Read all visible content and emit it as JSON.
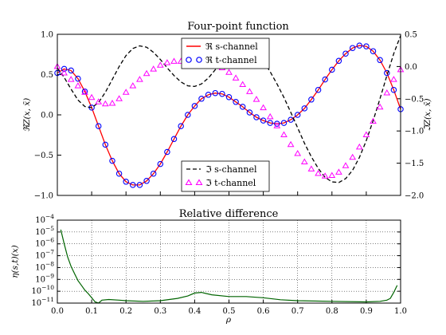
{
  "figure": {
    "background": "#ffffff",
    "title_font": "serif"
  },
  "chart_data": [
    {
      "type": "line",
      "title": "Four-point function",
      "xlabel": "",
      "ylabel": "ℜZ(x, x̄)",
      "y2label": "ℑZ(x, x̄)",
      "xlim": [
        0.0,
        1.0
      ],
      "ylim": [
        -1.0,
        1.0
      ],
      "y2lim": [
        -2.0,
        0.5
      ],
      "yticks": [
        "−1.0",
        "−0.5",
        "0.0",
        "0.5",
        "1.0"
      ],
      "y2ticks": [
        "−2.0",
        "−1.5",
        "−1.0",
        "−0.5",
        "0.0",
        "0.5"
      ],
      "grid": false,
      "x": [
        0.0,
        0.02,
        0.04,
        0.06,
        0.08,
        0.1,
        0.12,
        0.14,
        0.16,
        0.18,
        0.2,
        0.22,
        0.24,
        0.26,
        0.28,
        0.3,
        0.32,
        0.34,
        0.36,
        0.38,
        0.4,
        0.42,
        0.44,
        0.46,
        0.48,
        0.5,
        0.52,
        0.54,
        0.56,
        0.58,
        0.6,
        0.62,
        0.64,
        0.66,
        0.68,
        0.7,
        0.72,
        0.74,
        0.76,
        0.78,
        0.8,
        0.82,
        0.84,
        0.86,
        0.88,
        0.9,
        0.92,
        0.94,
        0.96,
        0.98,
        1.0
      ],
      "series": [
        {
          "name": "ℜ s-channel",
          "axis": "left",
          "style": "line",
          "color": "#ff0000",
          "values": [
            0.52,
            0.57,
            0.55,
            0.45,
            0.29,
            0.09,
            -0.14,
            -0.37,
            -0.57,
            -0.73,
            -0.83,
            -0.87,
            -0.87,
            -0.82,
            -0.73,
            -0.61,
            -0.46,
            -0.3,
            -0.14,
            0.0,
            0.11,
            0.2,
            0.25,
            0.27,
            0.26,
            0.22,
            0.16,
            0.1,
            0.03,
            -0.03,
            -0.07,
            -0.1,
            -0.11,
            -0.1,
            -0.06,
            0.0,
            0.08,
            0.19,
            0.31,
            0.44,
            0.56,
            0.67,
            0.76,
            0.83,
            0.86,
            0.85,
            0.79,
            0.68,
            0.52,
            0.31,
            0.07
          ]
        },
        {
          "name": "ℜ t-channel",
          "axis": "left",
          "style": "circle",
          "color": "#0000ff",
          "values": [
            0.52,
            0.57,
            0.55,
            0.45,
            0.29,
            0.09,
            -0.14,
            -0.37,
            -0.57,
            -0.73,
            -0.83,
            -0.87,
            -0.87,
            -0.82,
            -0.73,
            -0.61,
            -0.46,
            -0.3,
            -0.14,
            0.0,
            0.11,
            0.2,
            0.25,
            0.27,
            0.26,
            0.22,
            0.16,
            0.1,
            0.03,
            -0.03,
            -0.07,
            -0.1,
            -0.11,
            -0.1,
            -0.06,
            0.0,
            0.08,
            0.19,
            0.31,
            0.44,
            0.56,
            0.67,
            0.76,
            0.83,
            0.86,
            0.85,
            0.79,
            0.68,
            0.52,
            0.31,
            0.07
          ]
        },
        {
          "name": "ℑ s-channel",
          "axis": "right",
          "style": "dashed",
          "color": "#000000",
          "values": [
            -0.02,
            -0.17,
            -0.35,
            -0.52,
            -0.62,
            -0.64,
            -0.56,
            -0.4,
            -0.2,
            0.0,
            0.17,
            0.28,
            0.32,
            0.3,
            0.22,
            0.11,
            -0.02,
            -0.14,
            -0.24,
            -0.3,
            -0.31,
            -0.27,
            -0.18,
            -0.05,
            0.1,
            0.23,
            0.32,
            0.35,
            0.32,
            0.22,
            0.09,
            -0.08,
            -0.27,
            -0.48,
            -0.71,
            -0.95,
            -1.19,
            -1.4,
            -1.58,
            -1.72,
            -1.79,
            -1.8,
            -1.74,
            -1.61,
            -1.41,
            -1.15,
            -0.84,
            -0.5,
            -0.14,
            0.2,
            0.48
          ]
        },
        {
          "name": "ℑ t-channel",
          "axis": "right",
          "style": "triangle",
          "color": "#ff00ff",
          "values": [
            0.0,
            -0.1,
            -0.2,
            -0.3,
            -0.4,
            -0.48,
            -0.55,
            -0.58,
            -0.57,
            -0.5,
            -0.4,
            -0.3,
            -0.2,
            -0.11,
            -0.04,
            0.02,
            0.06,
            0.08,
            0.08,
            0.07,
            0.06,
            0.06,
            0.05,
            0.03,
            -0.02,
            -0.09,
            -0.18,
            -0.28,
            -0.39,
            -0.51,
            -0.64,
            -0.78,
            -0.92,
            -1.06,
            -1.21,
            -1.35,
            -1.48,
            -1.59,
            -1.66,
            -1.7,
            -1.69,
            -1.64,
            -1.54,
            -1.41,
            -1.25,
            -1.06,
            -0.85,
            -0.63,
            -0.41,
            -0.2,
            -0.05
          ]
        }
      ],
      "legend_upper": [
        "ℜ s-channel",
        "ℜ t-channel"
      ],
      "legend_lower": [
        "ℑ s-channel",
        "ℑ t-channel"
      ],
      "legend_upper_placement": "top-center",
      "legend_lower_placement": "bottom-center"
    },
    {
      "type": "line",
      "title": "Relative difference",
      "xlabel": "ρ",
      "ylabel": "η(s,t)(x)",
      "xlim": [
        0.0,
        1.0
      ],
      "ylim_log10": [
        -11.0,
        -4.0
      ],
      "yscale": "log",
      "xticks": [
        "0.0",
        "0.1",
        "0.2",
        "0.3",
        "0.4",
        "0.5",
        "0.6",
        "0.7",
        "0.8",
        "0.9",
        "1.0"
      ],
      "ytick_exponents": [
        "-4",
        "-5",
        "-6",
        "-7",
        "-8",
        "-9",
        "-10",
        "-11"
      ],
      "grid": true,
      "series": [
        {
          "name": "",
          "color": "#006400",
          "x": [
            0.01,
            0.02,
            0.03,
            0.04,
            0.05,
            0.06,
            0.07,
            0.08,
            0.09,
            0.1,
            0.11,
            0.12,
            0.13,
            0.15,
            0.18,
            0.2,
            0.25,
            0.3,
            0.35,
            0.38,
            0.4,
            0.42,
            0.45,
            0.5,
            0.55,
            0.6,
            0.65,
            0.7,
            0.8,
            0.9,
            0.94,
            0.96,
            0.97,
            0.98,
            0.99
          ],
          "log10_values": [
            -4.8,
            -6.0,
            -7.1,
            -7.9,
            -8.5,
            -9.1,
            -9.5,
            -9.9,
            -10.2,
            -10.55,
            -10.9,
            -11.0,
            -10.75,
            -10.7,
            -10.75,
            -10.8,
            -10.85,
            -10.8,
            -10.6,
            -10.4,
            -10.15,
            -10.1,
            -10.3,
            -10.45,
            -10.45,
            -10.55,
            -10.72,
            -10.8,
            -10.85,
            -10.9,
            -10.85,
            -10.75,
            -10.6,
            -10.1,
            -9.5
          ]
        }
      ]
    }
  ]
}
